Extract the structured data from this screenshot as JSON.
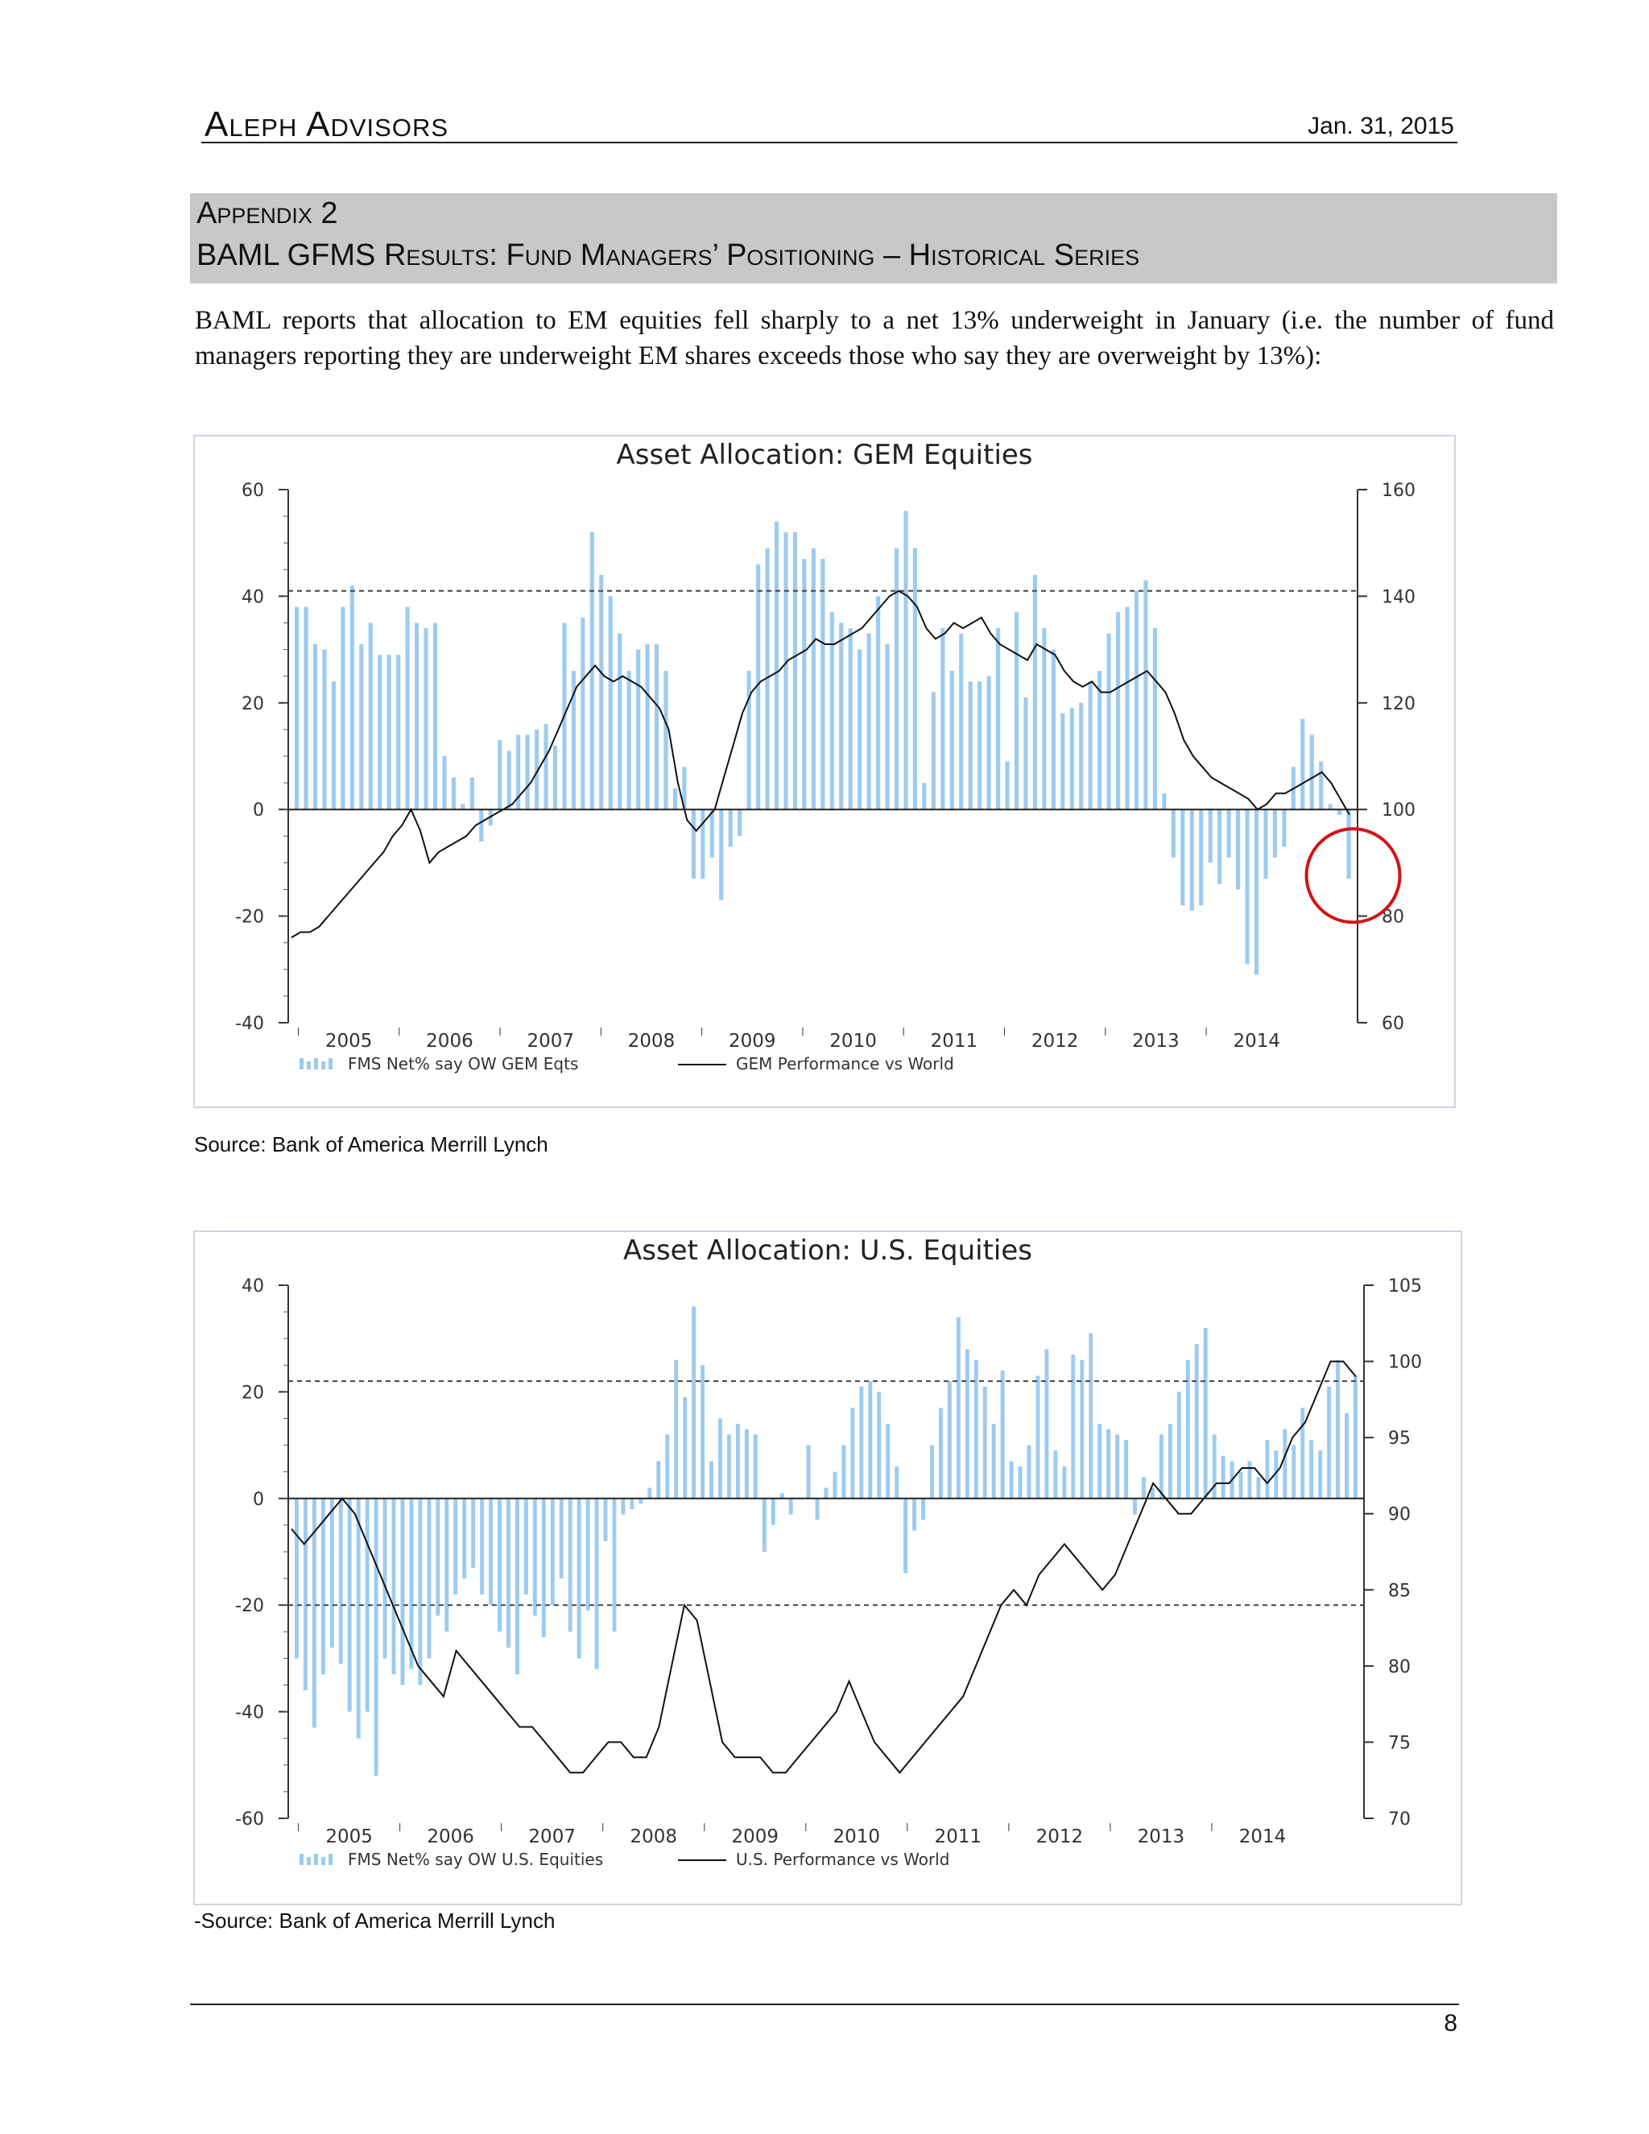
{
  "header": {
    "brand": "Aleph Advisors",
    "date": "Jan. 31, 2015"
  },
  "appendix": {
    "line1": "Appendix 2",
    "line2": "BAML GFMS Results: Fund Managers’ Positioning – Historical Series"
  },
  "intro": "BAML reports that allocation to EM equities fell sharply to a net 13% underweight in January (i.e. the number of fund managers reporting they are underweight EM shares exceeds those who say they are overweight by 13%):",
  "sources": {
    "chart1": "Source: Bank of America Merrill Lynch",
    "chart2": "-Source: Bank of America Merrill Lynch"
  },
  "footer": {
    "page": "8"
  },
  "colors": {
    "bars": "#9dcbf0",
    "line": "#111111",
    "circle": "#d11414",
    "shading": "#c8c8c8"
  },
  "chart_data": [
    {
      "type": "bar",
      "title": "Asset Allocation: GEM Equities",
      "x_tick_labels": [
        "2005",
        "2006",
        "2007",
        "2008",
        "2009",
        "2010",
        "2011",
        "2012",
        "2013",
        "2014"
      ],
      "y_left": {
        "ylim": [
          -40,
          60
        ],
        "ticks": [
          "60",
          "40",
          "20",
          "0",
          "-20",
          "-40"
        ]
      },
      "y_right": {
        "ylim": [
          60,
          160
        ],
        "ticks": [
          "160",
          "140",
          "120",
          "100",
          "80",
          "60"
        ]
      },
      "reference_lines_left": [
        41
      ],
      "annotation": "red circle around latest reading",
      "legend": {
        "bars": "FMS Net% say OW GEM Eqts",
        "line": "GEM Performance vs World"
      },
      "series": [
        {
          "name": "FMS Net% say OW GEM Eqts",
          "axis": "left",
          "kind": "bar",
          "values": [
            38,
            38,
            31,
            30,
            24,
            38,
            42,
            31,
            35,
            29,
            29,
            29,
            38,
            35,
            34,
            35,
            10,
            6,
            1,
            6,
            -6,
            -3,
            13,
            11,
            14,
            14,
            15,
            16,
            12,
            35,
            26,
            36,
            52,
            44,
            40,
            33,
            26,
            30,
            31,
            31,
            26,
            4,
            8,
            -13,
            -13,
            -9,
            -17,
            -7,
            -5,
            26,
            46,
            49,
            54,
            52,
            52,
            47,
            49,
            47,
            37,
            35,
            34,
            30,
            33,
            40,
            31,
            49,
            56,
            49,
            5,
            22,
            34,
            26,
            33,
            24,
            24,
            25,
            34,
            9,
            37,
            21,
            44,
            34,
            30,
            18,
            19,
            20,
            24,
            26,
            33,
            37,
            38,
            41,
            43,
            34,
            3,
            -9,
            -18,
            -19,
            -18,
            -10,
            -14,
            -9,
            -15,
            -29,
            -31,
            -13,
            -9,
            -7,
            8,
            17,
            14,
            9,
            1,
            -1,
            -13
          ]
        },
        {
          "name": "GEM Performance vs World",
          "axis": "right",
          "kind": "line",
          "values": [
            76,
            77,
            77,
            78,
            80,
            82,
            84,
            86,
            88,
            90,
            92,
            95,
            97,
            100,
            96,
            90,
            92,
            93,
            94,
            95,
            97,
            98,
            99,
            100,
            101,
            103,
            105,
            108,
            111,
            115,
            119,
            123,
            125,
            127,
            125,
            124,
            125,
            124,
            123,
            121,
            119,
            115,
            105,
            98,
            96,
            98,
            100,
            106,
            112,
            118,
            122,
            124,
            125,
            126,
            128,
            129,
            130,
            132,
            131,
            131,
            132,
            133,
            134,
            136,
            138,
            140,
            141,
            140,
            138,
            134,
            132,
            133,
            135,
            134,
            135,
            136,
            133,
            131,
            130,
            129,
            128,
            131,
            130,
            129,
            126,
            124,
            123,
            124,
            122,
            122,
            123,
            124,
            125,
            126,
            124,
            122,
            118,
            113,
            110,
            108,
            106,
            105,
            104,
            103,
            102,
            100,
            101,
            103,
            103,
            104,
            105,
            106,
            107,
            105,
            102,
            99
          ]
        }
      ]
    },
    {
      "type": "bar",
      "title": "Asset Allocation: U.S. Equities",
      "x_tick_labels": [
        "2005",
        "2006",
        "2007",
        "2008",
        "2009",
        "2010",
        "2011",
        "2012",
        "2013",
        "2014"
      ],
      "y_left": {
        "ylim": [
          -60,
          40
        ],
        "ticks": [
          "40",
          "20",
          "0",
          "-20",
          "-40",
          "-60"
        ]
      },
      "y_right": {
        "ylim": [
          70,
          105
        ],
        "ticks": [
          "105",
          "100",
          "95",
          "90",
          "85",
          "80",
          "75",
          "70"
        ]
      },
      "reference_lines_left": [
        22,
        -20
      ],
      "legend": {
        "bars": "FMS Net% say OW U.S. Equities",
        "line": "U.S. Performance vs World"
      },
      "series": [
        {
          "name": "FMS Net% say OW U.S. Equities",
          "axis": "left",
          "kind": "bar",
          "values": [
            -30,
            -36,
            -43,
            -33,
            -28,
            -31,
            -40,
            -45,
            -40,
            -52,
            -30,
            -33,
            -35,
            -32,
            -35,
            -30,
            -22,
            -25,
            -18,
            -15,
            -13,
            -18,
            -20,
            -25,
            -28,
            -33,
            -18,
            -22,
            -26,
            -20,
            -15,
            -25,
            -30,
            -21,
            -32,
            -8,
            -25,
            -3,
            -2,
            -1,
            2,
            7,
            12,
            26,
            19,
            36,
            25,
            7,
            15,
            12,
            14,
            13,
            12,
            -10,
            -5,
            1,
            -3,
            0,
            10,
            -4,
            2,
            5,
            10,
            17,
            21,
            22,
            20,
            14,
            6,
            -14,
            -6,
            -4,
            10,
            17,
            22,
            34,
            28,
            26,
            21,
            14,
            24,
            7,
            6,
            10,
            23,
            28,
            9,
            6,
            27,
            26,
            31,
            14,
            13,
            12,
            11,
            -3,
            4,
            2,
            12,
            14,
            20,
            26,
            29,
            32,
            12,
            8,
            7,
            5,
            7,
            4,
            11,
            9,
            13,
            10,
            17,
            11,
            9,
            21,
            26,
            16,
            23
          ]
        },
        {
          "name": "U.S. Performance vs World",
          "axis": "right",
          "kind": "line",
          "values": [
            89,
            88,
            89,
            90,
            91,
            90,
            88,
            86,
            84,
            82,
            80,
            79,
            78,
            81,
            80,
            79,
            78,
            77,
            76,
            76,
            75,
            74,
            73,
            73,
            74,
            75,
            75,
            74,
            74,
            76,
            80,
            84,
            83,
            79,
            75,
            74,
            74,
            74,
            73,
            73,
            74,
            75,
            76,
            77,
            79,
            77,
            75,
            74,
            73,
            74,
            75,
            76,
            77,
            78,
            80,
            82,
            84,
            85,
            84,
            86,
            87,
            88,
            87,
            86,
            85,
            86,
            88,
            90,
            92,
            91,
            90,
            90,
            91,
            92,
            92,
            93,
            93,
            92,
            93,
            95,
            96,
            98,
            100,
            100,
            99
          ]
        }
      ]
    }
  ]
}
